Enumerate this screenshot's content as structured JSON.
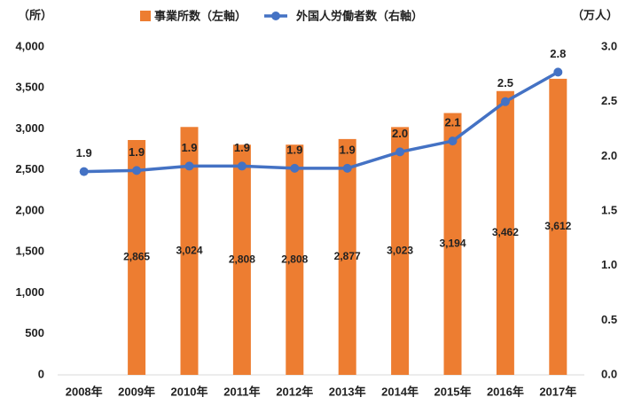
{
  "chart_data": {
    "type": "bar-line",
    "y_label": "（所）",
    "y2_label": "（万人）",
    "categories": [
      "2008年",
      "2009年",
      "2010年",
      "2011年",
      "2012年",
      "2013年",
      "2014年",
      "2015年",
      "2016年",
      "2017年"
    ],
    "series": [
      {
        "name": "事業所数（左軸）",
        "type": "bar",
        "color": "#ED7D31",
        "values": [
          null,
          2865,
          3024,
          2808,
          2808,
          2877,
          3023,
          3194,
          3462,
          3612
        ],
        "value_labels": [
          null,
          "2,865",
          "3,024",
          "2,808",
          "2,808",
          "2,877",
          "3,023",
          "3,194",
          "3,462",
          "3,612"
        ]
      },
      {
        "name": "外国人労働者数（右軸）",
        "type": "line",
        "axis": "y2",
        "color": "#4472C4",
        "values": [
          1.86,
          1.87,
          1.91,
          1.91,
          1.89,
          1.89,
          2.04,
          2.14,
          2.5,
          2.77
        ]
      }
    ],
    "line_value_labels": [
      "1.9",
      "1.9",
      "1.9",
      "1.9",
      "1.9",
      "1.9",
      "2.0",
      "2.1",
      "2.5",
      "2.8"
    ],
    "ylim": [
      0,
      4000
    ],
    "yticks": [
      0,
      500,
      {
        "value": 1000,
        "label": "1,000"
      },
      {
        "value": 1500,
        "label": "1,500"
      },
      {
        "value": 2000,
        "label": "2,000"
      },
      {
        "value": 2500,
        "label": "2,500"
      },
      {
        "value": 3000,
        "label": "3,000"
      },
      {
        "value": 3500,
        "label": "3,500"
      },
      {
        "value": 4000,
        "label": "4,000"
      }
    ],
    "y2lim": [
      0,
      3
    ],
    "y2ticks": [
      {
        "value": 0,
        "label": "0.0"
      },
      0.5,
      {
        "value": 1,
        "label": "1.0"
      },
      1.5,
      {
        "value": 2,
        "label": "2.0"
      },
      2.5,
      {
        "value": 3,
        "label": "3.0"
      }
    ],
    "legend": "top"
  }
}
